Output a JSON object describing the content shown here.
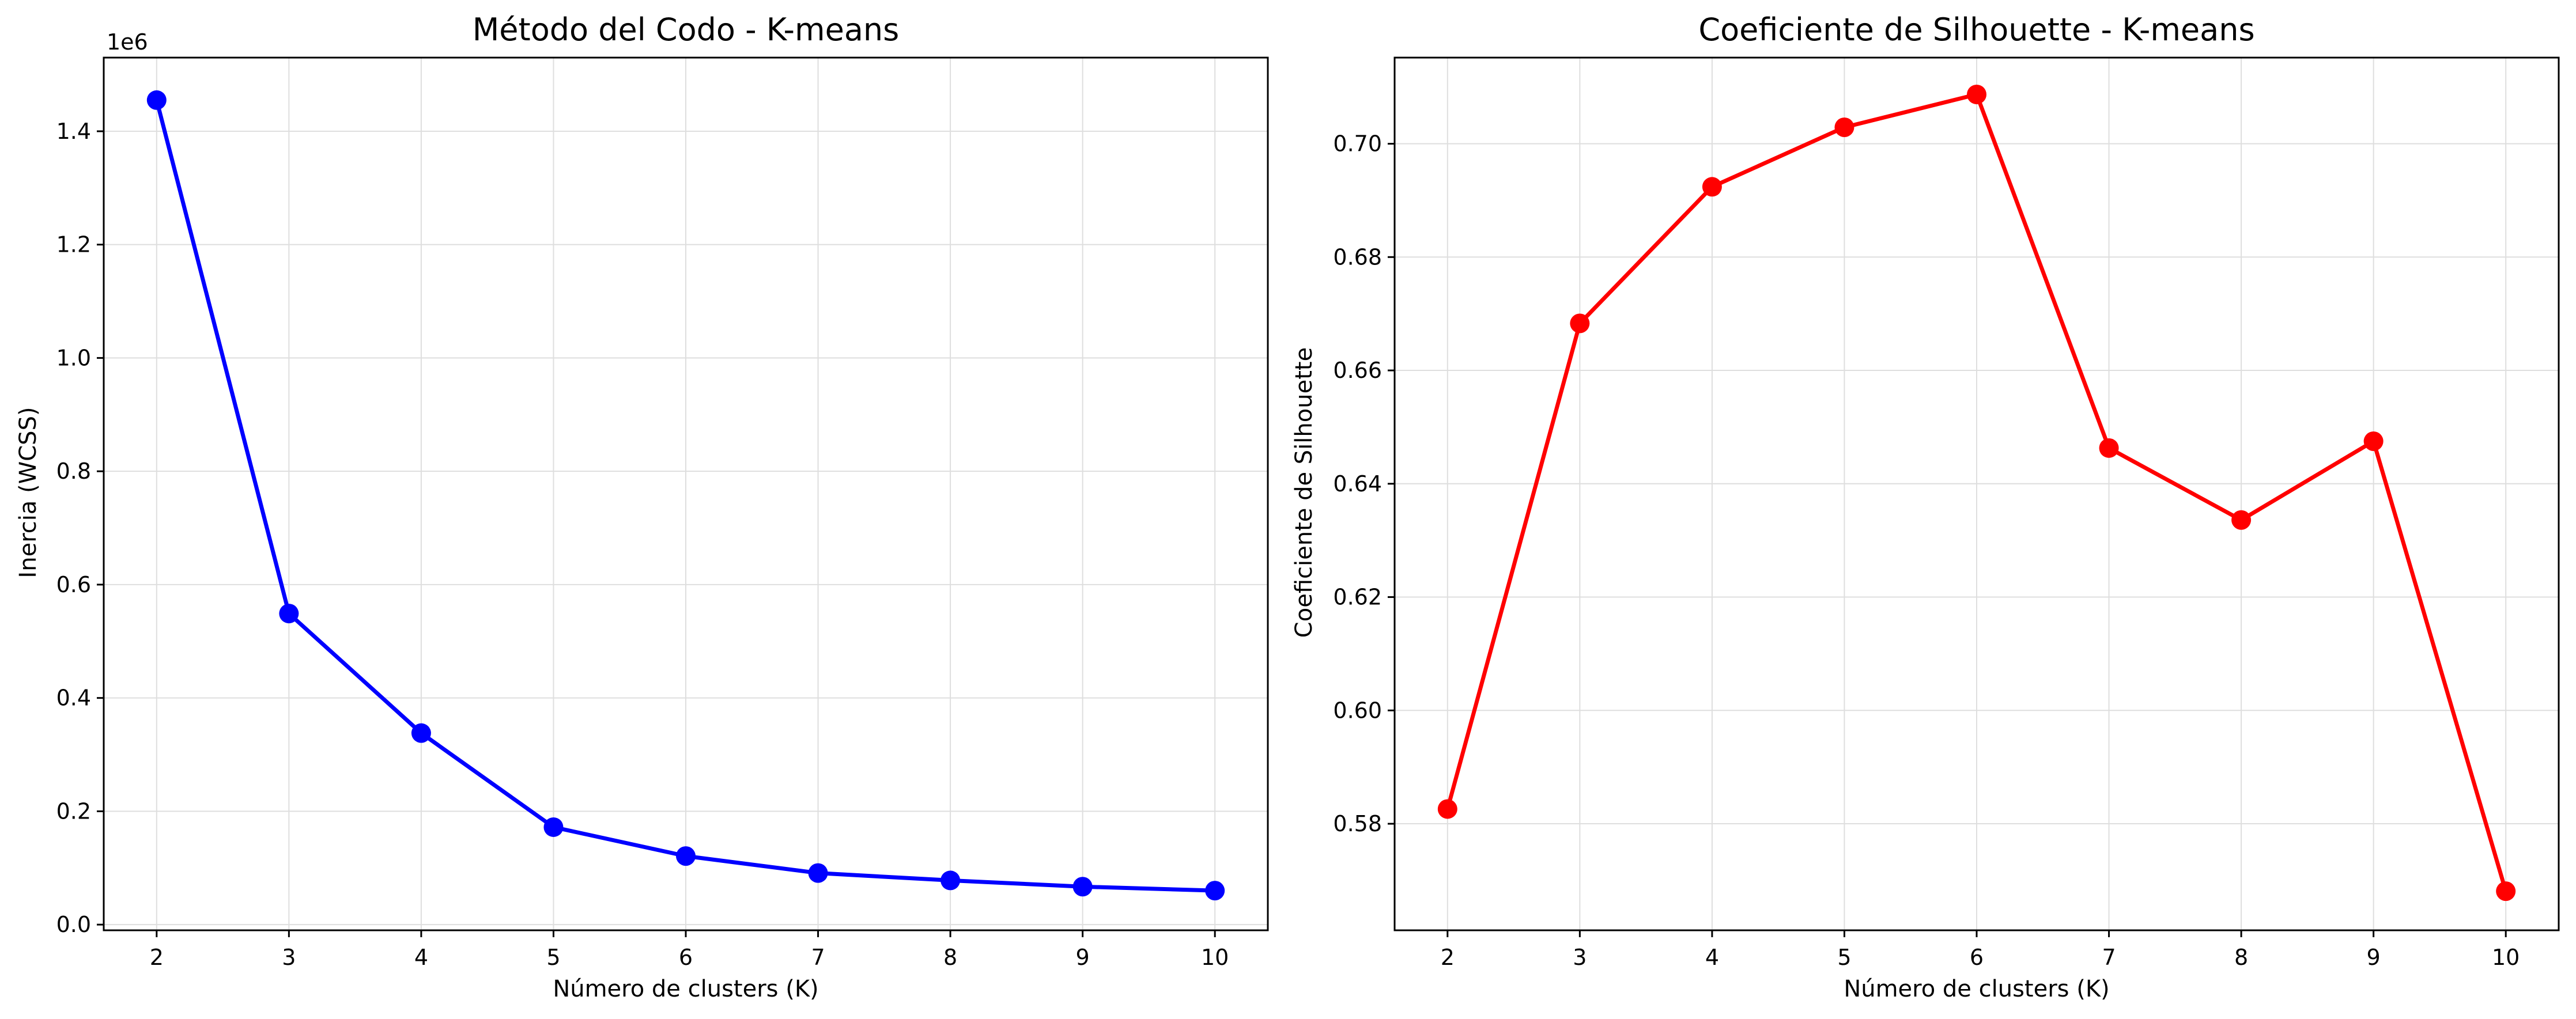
{
  "chart_data": [
    {
      "type": "line",
      "title": "Método del Codo - K-means",
      "xlabel": "Número de clusters (K)",
      "ylabel": "Inercia (WCSS)",
      "y_offset_label": "1e6",
      "x": [
        2,
        3,
        4,
        5,
        6,
        7,
        8,
        9,
        10
      ],
      "x_ticks": [
        "2",
        "3",
        "4",
        "5",
        "6",
        "7",
        "8",
        "9",
        "10"
      ],
      "xlim": [
        1.6,
        10.4
      ],
      "y_ticks": [
        0.0,
        0.2,
        0.4,
        0.6,
        0.8,
        1.0,
        1.2,
        1.4
      ],
      "y_tick_labels": [
        "0.0",
        "0.2",
        "0.4",
        "0.6",
        "0.8",
        "1.0",
        "1.2",
        "1.4"
      ],
      "ylim": [
        -0.01,
        1.53
      ],
      "grid": true,
      "series": [
        {
          "values": [
            1.455,
            0.549,
            0.338,
            0.172,
            0.121,
            0.091,
            0.078,
            0.067,
            0.06
          ],
          "color": "#0000ff",
          "marker": "circle"
        }
      ]
    },
    {
      "type": "line",
      "title": "Coeficiente de Silhouette - K-means",
      "xlabel": "Número de clusters (K)",
      "ylabel": "Coeficiente de Silhouette",
      "x": [
        2,
        3,
        4,
        5,
        6,
        7,
        8,
        9,
        10
      ],
      "x_ticks": [
        "2",
        "3",
        "4",
        "5",
        "6",
        "7",
        "8",
        "9",
        "10"
      ],
      "xlim": [
        1.6,
        10.4
      ],
      "y_ticks": [
        0.58,
        0.6,
        0.62,
        0.64,
        0.66,
        0.68,
        0.7
      ],
      "y_tick_labels": [
        "0.58",
        "0.60",
        "0.62",
        "0.64",
        "0.66",
        "0.68",
        "0.70"
      ],
      "ylim": [
        0.5612,
        0.7152
      ],
      "grid": true,
      "series": [
        {
          "values": [
            0.5826,
            0.6683,
            0.6924,
            0.7029,
            0.7087,
            0.6463,
            0.6336,
            0.6475,
            0.5681
          ],
          "color": "#ff0000",
          "marker": "circle"
        }
      ]
    }
  ]
}
